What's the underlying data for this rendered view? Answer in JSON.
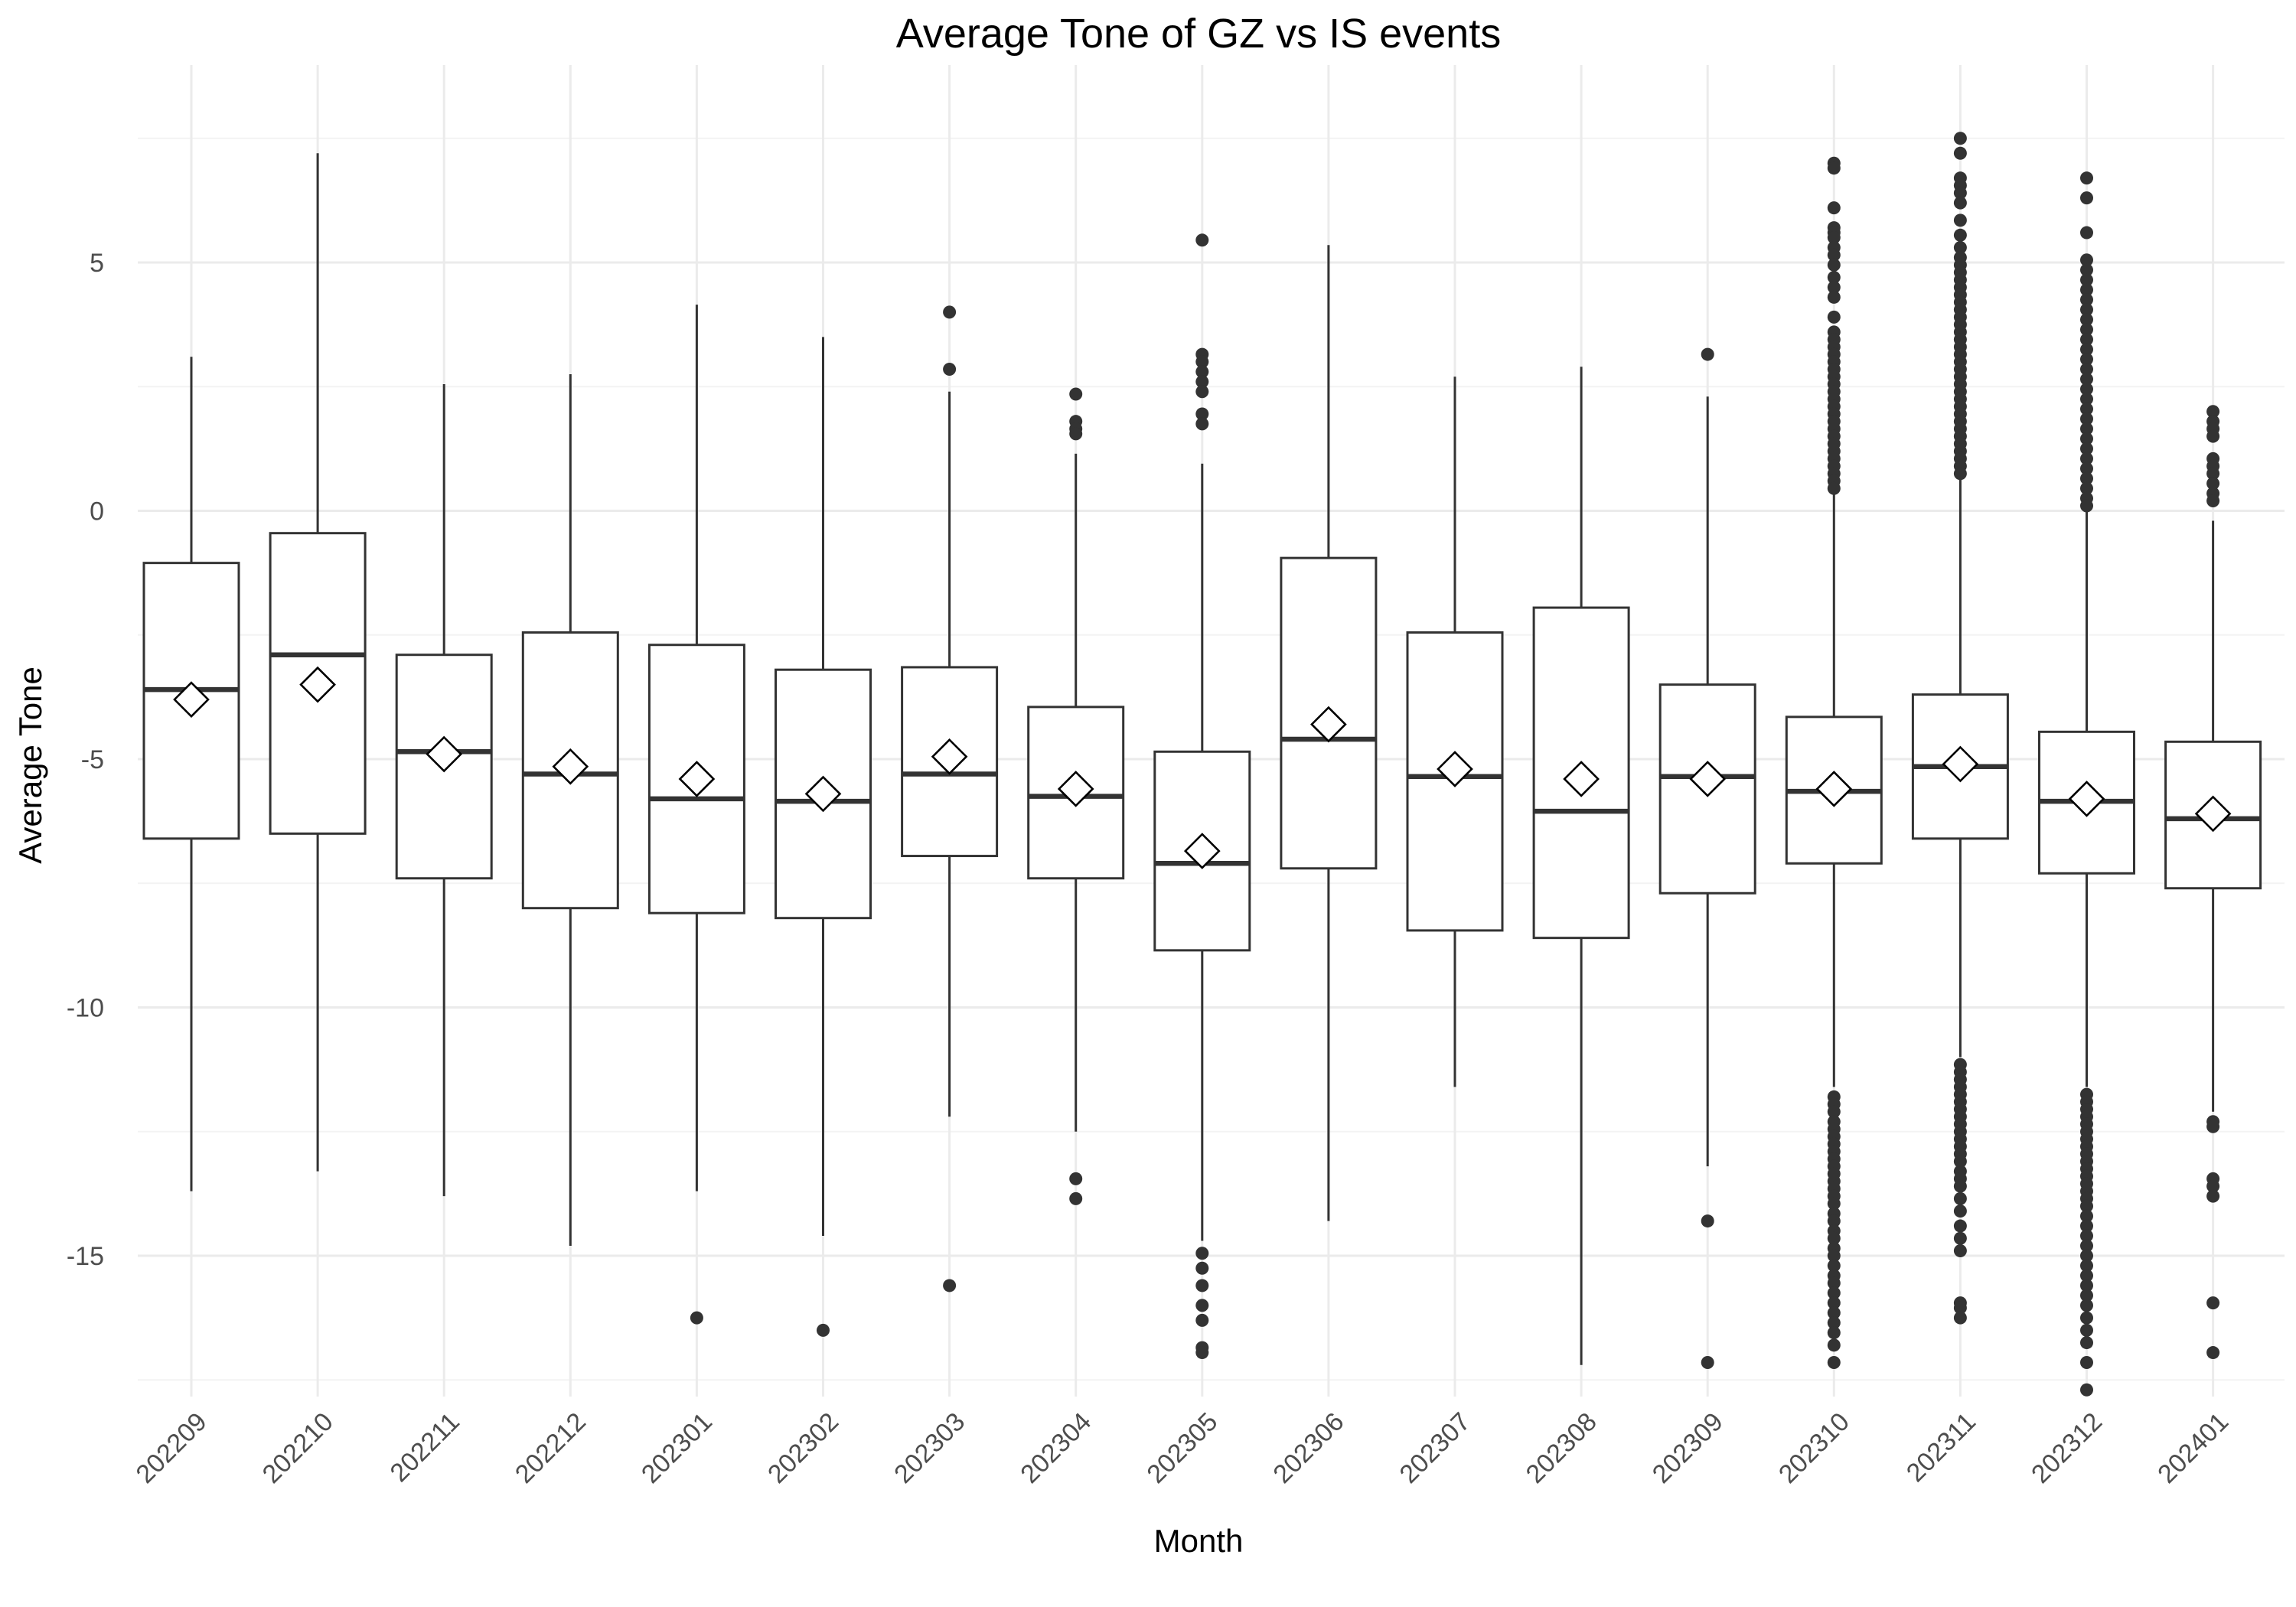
{
  "chart_data": {
    "type": "boxplot",
    "title": "Average Tone of GZ vs IS events",
    "xlabel": "Month",
    "ylabel": "Average Tone",
    "ylim": [
      -18.0,
      8.0
    ],
    "yticks": [
      5,
      0,
      -5,
      -10,
      -15
    ],
    "ytick_labels": [
      "5",
      "0",
      "-5",
      "-10",
      "-15"
    ],
    "grid": true,
    "categories": [
      "202209",
      "202210",
      "202211",
      "202212",
      "202301",
      "202302",
      "202303",
      "202304",
      "202305",
      "202306",
      "202307",
      "202308",
      "202309",
      "202310",
      "202311",
      "202312",
      "202401"
    ],
    "boxes": [
      {
        "whisker_low": -13.7,
        "q1": -6.6,
        "median": -3.6,
        "q3": -1.05,
        "whisker_high": 3.1,
        "mean": -3.8,
        "outliers": []
      },
      {
        "whisker_low": -13.3,
        "q1": -6.5,
        "median": -2.9,
        "q3": -0.45,
        "whisker_high": 7.2,
        "mean": -3.5,
        "outliers": []
      },
      {
        "whisker_low": -13.8,
        "q1": -7.4,
        "median": -4.85,
        "q3": -2.9,
        "whisker_high": 2.55,
        "mean": -4.9,
        "outliers": []
      },
      {
        "whisker_low": -14.8,
        "q1": -8.0,
        "median": -5.3,
        "q3": -2.45,
        "whisker_high": 2.75,
        "mean": -5.15,
        "outliers": []
      },
      {
        "whisker_low": -13.7,
        "q1": -8.1,
        "median": -5.8,
        "q3": -2.7,
        "whisker_high": 4.15,
        "mean": -5.4,
        "outliers": [
          -16.25
        ]
      },
      {
        "whisker_low": -14.6,
        "q1": -8.2,
        "median": -5.85,
        "q3": -3.2,
        "whisker_high": 3.5,
        "mean": -5.7,
        "outliers": [
          -16.5
        ]
      },
      {
        "whisker_low": -12.2,
        "q1": -6.95,
        "median": -5.3,
        "q3": -3.15,
        "whisker_high": 2.4,
        "mean": -4.95,
        "outliers": [
          4.0,
          2.85,
          -15.6
        ]
      },
      {
        "whisker_low": -12.5,
        "q1": -7.4,
        "median": -5.75,
        "q3": -3.95,
        "whisker_high": 1.15,
        "mean": -5.6,
        "outliers": [
          2.35,
          1.8,
          1.65,
          1.55,
          -13.45,
          -13.85
        ]
      },
      {
        "whisker_low": -14.7,
        "q1": -8.85,
        "median": -7.1,
        "q3": -4.85,
        "whisker_high": 0.95,
        "mean": -6.85,
        "outliers": [
          5.45,
          3.15,
          3.0,
          2.8,
          2.6,
          2.4,
          1.95,
          1.75,
          -14.95,
          -15.25,
          -15.6,
          -16.0,
          -16.3,
          -16.85,
          -16.95
        ]
      },
      {
        "whisker_low": -14.3,
        "q1": -7.2,
        "median": -4.6,
        "q3": -0.95,
        "whisker_high": 5.35,
        "mean": -4.3,
        "outliers": []
      },
      {
        "whisker_low": -11.6,
        "q1": -8.45,
        "median": -5.35,
        "q3": -2.45,
        "whisker_high": 2.7,
        "mean": -5.2,
        "outliers": []
      },
      {
        "whisker_low": -17.2,
        "q1": -8.6,
        "median": -6.05,
        "q3": -1.95,
        "whisker_high": 2.9,
        "mean": -5.4,
        "outliers": []
      },
      {
        "whisker_low": -13.2,
        "q1": -7.7,
        "median": -5.35,
        "q3": -3.5,
        "whisker_high": 2.3,
        "mean": -5.4,
        "outliers": [
          3.15,
          -14.3,
          -17.15
        ]
      },
      {
        "whisker_low": -11.6,
        "q1": -7.1,
        "median": -5.65,
        "q3": -4.15,
        "whisker_high": 0.35,
        "mean": -5.6,
        "outliers": [
          7.0,
          6.9,
          6.1,
          5.7,
          5.6,
          5.5,
          5.3,
          5.15,
          4.95,
          4.7,
          4.5,
          4.3,
          3.9,
          3.6,
          3.45,
          3.3,
          3.15,
          3.0,
          2.85,
          2.7,
          2.55,
          2.4,
          2.25,
          2.1,
          1.95,
          1.8,
          1.65,
          1.5,
          1.35,
          1.2,
          1.05,
          0.9,
          0.75,
          0.6,
          0.45,
          -11.8,
          -11.95,
          -12.1,
          -12.3,
          -12.45,
          -12.6,
          -12.75,
          -12.9,
          -13.05,
          -13.2,
          -13.35,
          -13.5,
          -13.65,
          -13.8,
          -13.95,
          -14.15,
          -14.3,
          -14.5,
          -14.65,
          -14.85,
          -15.0,
          -15.2,
          -15.4,
          -15.55,
          -15.75,
          -15.95,
          -16.15,
          -16.35,
          -16.55,
          -16.8,
          -17.15
        ]
      },
      {
        "whisker_low": -11.0,
        "q1": -6.6,
        "median": -5.15,
        "q3": -3.7,
        "whisker_high": 0.65,
        "mean": -5.1,
        "outliers": [
          7.5,
          7.2,
          6.7,
          6.55,
          6.4,
          6.2,
          5.85,
          5.55,
          5.3,
          5.1,
          4.95,
          4.8,
          4.65,
          4.5,
          4.35,
          4.2,
          4.05,
          3.9,
          3.75,
          3.6,
          3.45,
          3.3,
          3.15,
          3.0,
          2.85,
          2.7,
          2.55,
          2.4,
          2.25,
          2.1,
          1.95,
          1.8,
          1.65,
          1.5,
          1.35,
          1.2,
          1.05,
          0.9,
          0.75,
          -11.15,
          -11.3,
          -11.45,
          -11.6,
          -11.75,
          -11.9,
          -12.05,
          -12.2,
          -12.35,
          -12.5,
          -12.65,
          -12.8,
          -12.95,
          -13.1,
          -13.3,
          -13.45,
          -13.6,
          -13.85,
          -14.1,
          -14.4,
          -14.65,
          -14.9,
          -15.95,
          -16.05,
          -16.25
        ]
      },
      {
        "whisker_low": -11.6,
        "q1": -7.3,
        "median": -5.85,
        "q3": -4.45,
        "whisker_high": 0.05,
        "mean": -5.8,
        "outliers": [
          6.7,
          6.3,
          5.6,
          5.05,
          4.85,
          4.65,
          4.45,
          4.25,
          4.05,
          3.85,
          3.65,
          3.45,
          3.25,
          3.05,
          2.85,
          2.65,
          2.45,
          2.25,
          2.05,
          1.85,
          1.65,
          1.45,
          1.25,
          1.05,
          0.85,
          0.65,
          0.45,
          0.25,
          0.1,
          -11.75,
          -11.9,
          -12.05,
          -12.2,
          -12.35,
          -12.5,
          -12.65,
          -12.8,
          -12.95,
          -13.1,
          -13.25,
          -13.4,
          -13.55,
          -13.7,
          -13.85,
          -14.0,
          -14.2,
          -14.4,
          -14.6,
          -14.8,
          -15.0,
          -15.2,
          -15.4,
          -15.6,
          -15.8,
          -16.0,
          -16.25,
          -16.5,
          -16.75,
          -17.15,
          -17.7
        ]
      },
      {
        "whisker_low": -12.1,
        "q1": -7.6,
        "median": -6.2,
        "q3": -4.65,
        "whisker_high": -0.2,
        "mean": -6.1,
        "outliers": [
          2.0,
          1.8,
          1.65,
          1.5,
          1.05,
          0.9,
          0.75,
          0.55,
          0.35,
          0.2,
          -12.3,
          -12.4,
          -13.45,
          -13.6,
          -13.8,
          -15.95,
          -16.95
        ]
      }
    ]
  }
}
